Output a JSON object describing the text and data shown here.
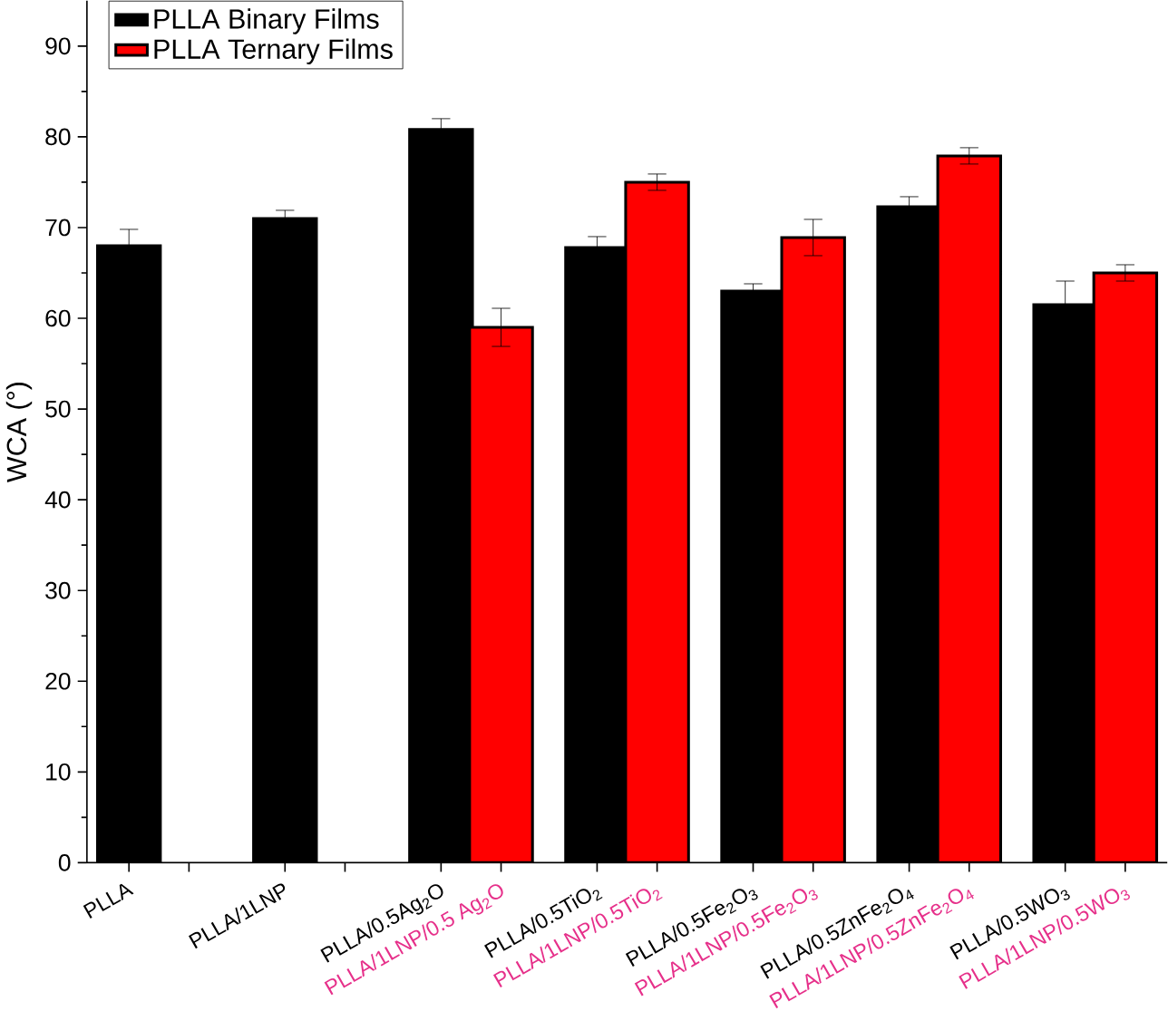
{
  "chart_data": {
    "type": "bar",
    "ylabel": "WCA (°)",
    "categories": [
      "PLLA",
      null,
      "PLLA/1LNP",
      null,
      "PLLA/0.5Ag$_{2}$O",
      "PLLA/1LNP/0.5 Ag$_{2}$O",
      "PLLA/0.5TiO$_{2}$",
      "PLLA/1LNP/0.5TiO$_{2}$",
      "PLLA/0.5Fe$_{2}$O$_{3}$",
      "PLLA/1LNP/0.5Fe$_{2}$O$_{3}$",
      "PLLA/0.5ZnFe$_{2}$O$_{4}$",
      "PLLA/1LNP/0.5ZnFe$_{2}$O$_{4}$",
      "PLLA/0.5WO$_{3}$",
      "PLLA/1LNP/0.5WO$_{3}$"
    ],
    "series": [
      {
        "name": "PLLA Binary Films",
        "color": "#000000",
        "values": [
          68.0,
          null,
          71.0,
          null,
          80.8,
          null,
          67.8,
          null,
          63.0,
          null,
          72.3,
          null,
          61.5,
          null
        ],
        "errors": [
          1.8,
          null,
          0.9,
          null,
          1.2,
          null,
          1.2,
          null,
          0.8,
          null,
          1.1,
          null,
          2.6,
          null
        ]
      },
      {
        "name": "PLLA Ternary Films",
        "color": "#ff0000",
        "values": [
          null,
          null,
          null,
          null,
          null,
          59.0,
          null,
          75.0,
          null,
          68.9,
          null,
          77.9,
          null,
          65.0
        ],
        "errors": [
          null,
          null,
          null,
          null,
          null,
          2.1,
          null,
          0.9,
          null,
          2.0,
          null,
          0.9,
          null,
          0.9
        ]
      }
    ],
    "ylim": [
      0,
      95
    ],
    "yticks": [
      0,
      10,
      20,
      30,
      40,
      50,
      60,
      70,
      80,
      90
    ],
    "grid": false,
    "legend": "top left"
  }
}
